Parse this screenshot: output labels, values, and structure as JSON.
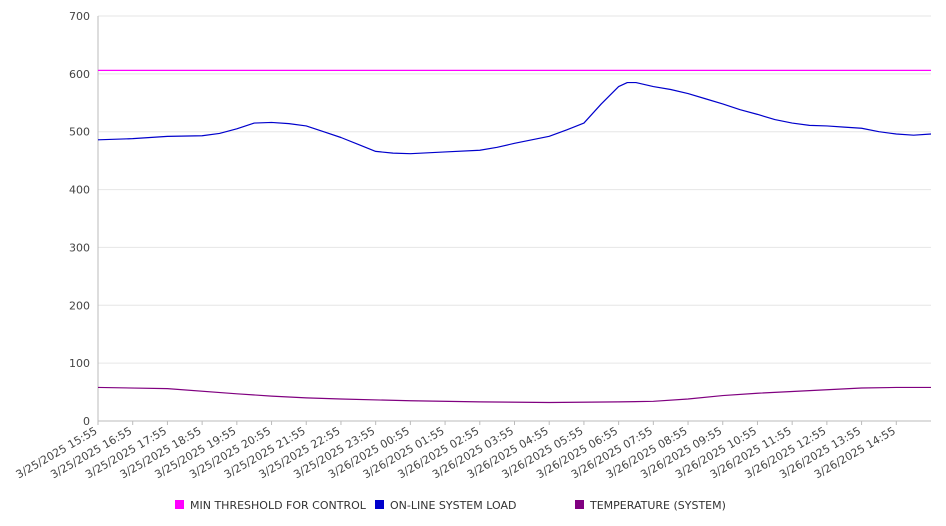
{
  "chart_data": {
    "type": "line",
    "title": "",
    "xlabel": "",
    "ylabel": "",
    "ylim": [
      0,
      700
    ],
    "yticks": [
      0,
      100,
      200,
      300,
      400,
      500,
      600,
      700
    ],
    "grid": true,
    "legend_placement": "bottom",
    "x_tick_labels": [
      "3/25/2025 15:55",
      "3/25/2025 16:55",
      "3/25/2025 17:55",
      "3/25/2025 18:55",
      "3/25/2025 19:55",
      "3/25/2025 20:55",
      "3/25/2025 21:55",
      "3/25/2025 22:55",
      "3/25/2025 23:55",
      "3/26/2025 00:55",
      "3/26/2025 01:55",
      "3/26/2025 02:55",
      "3/26/2025 03:55",
      "3/26/2025 04:55",
      "3/26/2025 05:55",
      "3/26/2025 06:55",
      "3/26/2025 07:55",
      "3/26/2025 08:55",
      "3/26/2025 09:55",
      "3/26/2025 10:55",
      "3/26/2025 11:55",
      "3/26/2025 12:55",
      "3/26/2025 13:55",
      "3/26/2025 14:55"
    ],
    "x_end": "3/26/2025 15:55",
    "series": [
      {
        "name": "MIN THRESHOLD FOR CONTROL",
        "color": "#ff00ff",
        "x": [
          "3/25/2025 15:55",
          "3/26/2025 15:55"
        ],
        "y": [
          606,
          606
        ]
      },
      {
        "name": "ON-LINE SYSTEM LOAD",
        "color": "#0000cc",
        "x": [
          "3/25/2025 15:55",
          "3/25/2025 16:55",
          "3/25/2025 17:55",
          "3/25/2025 18:55",
          "3/25/2025 19:25",
          "3/25/2025 19:55",
          "3/25/2025 20:25",
          "3/25/2025 20:55",
          "3/25/2025 21:25",
          "3/25/2025 21:55",
          "3/25/2025 22:25",
          "3/25/2025 22:55",
          "3/25/2025 23:25",
          "3/25/2025 23:55",
          "3/26/2025 00:25",
          "3/26/2025 00:55",
          "3/26/2025 01:55",
          "3/26/2025 02:55",
          "3/26/2025 03:25",
          "3/26/2025 03:55",
          "3/26/2025 04:25",
          "3/26/2025 04:55",
          "3/26/2025 05:25",
          "3/26/2025 05:55",
          "3/26/2025 06:25",
          "3/26/2025 06:55",
          "3/26/2025 07:10",
          "3/26/2025 07:25",
          "3/26/2025 07:55",
          "3/26/2025 08:25",
          "3/26/2025 08:55",
          "3/26/2025 09:25",
          "3/26/2025 09:55",
          "3/26/2025 10:25",
          "3/26/2025 10:55",
          "3/26/2025 11:25",
          "3/26/2025 11:55",
          "3/26/2025 12:25",
          "3/26/2025 12:55",
          "3/26/2025 13:25",
          "3/26/2025 13:55",
          "3/26/2025 14:25",
          "3/26/2025 14:55",
          "3/26/2025 15:25",
          "3/26/2025 15:55"
        ],
        "y": [
          486,
          488,
          492,
          493,
          497,
          505,
          515,
          516,
          514,
          510,
          500,
          490,
          478,
          466,
          463,
          462,
          465,
          468,
          473,
          480,
          486,
          492,
          503,
          515,
          548,
          578,
          585,
          585,
          578,
          573,
          566,
          557,
          548,
          538,
          530,
          521,
          515,
          511,
          510,
          508,
          506,
          500,
          496,
          494,
          496
        ]
      },
      {
        "name": "TEMPERATURE (SYSTEM)",
        "color": "#800080",
        "x": [
          "3/25/2025 15:55",
          "3/25/2025 17:55",
          "3/25/2025 19:55",
          "3/25/2025 20:55",
          "3/25/2025 21:55",
          "3/25/2025 22:55",
          "3/26/2025 00:55",
          "3/26/2025 02:55",
          "3/26/2025 04:55",
          "3/26/2025 06:55",
          "3/26/2025 07:55",
          "3/26/2025 08:55",
          "3/26/2025 09:55",
          "3/26/2025 10:55",
          "3/26/2025 11:55",
          "3/26/2025 12:55",
          "3/26/2025 13:55",
          "3/26/2025 14:55",
          "3/26/2025 15:55"
        ],
        "y": [
          58,
          56,
          47,
          43,
          40,
          38,
          35,
          33,
          32,
          33,
          34,
          38,
          44,
          48,
          51,
          54,
          57,
          58,
          58
        ]
      }
    ]
  }
}
